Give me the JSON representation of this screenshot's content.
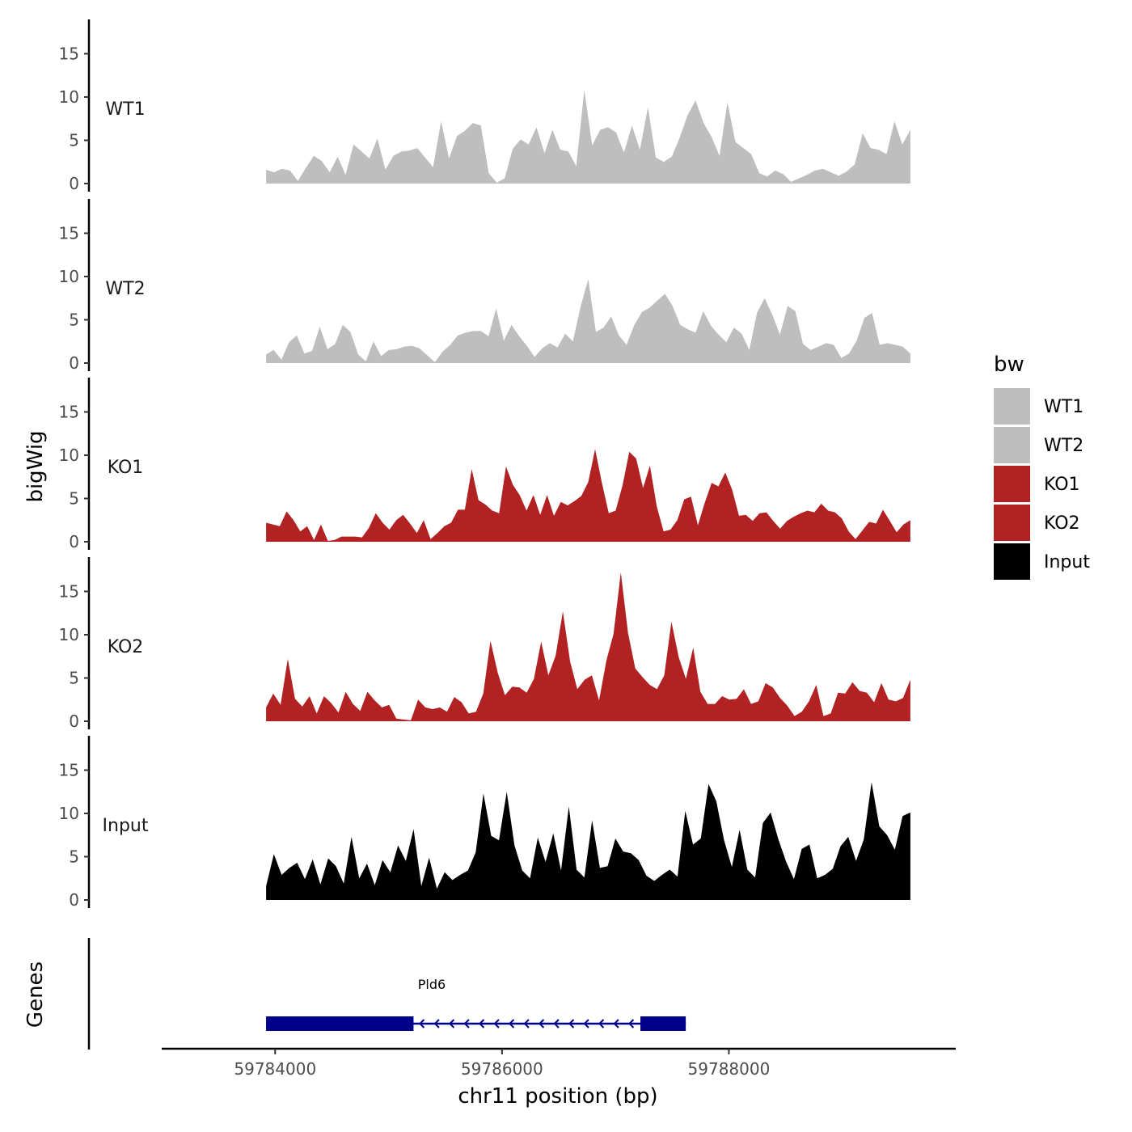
{
  "chart_data": {
    "type": "area",
    "chromosome": "chr11",
    "xlabel": "chr11 position (bp)",
    "ylabel": "bigWig",
    "genes_label": "Genes",
    "xlim": [
      59783000,
      59790000
    ],
    "x_range_data": [
      59783920,
      59789600
    ],
    "x_ticks": [
      59784000,
      59786000,
      59788000
    ],
    "x_tick_labels": [
      "59784000",
      "59786000",
      "59788000"
    ],
    "ylim": [
      0,
      18.5
    ],
    "y_ticks": [
      0,
      5,
      10,
      15
    ],
    "y_tick_labels": [
      "0",
      "5",
      "10",
      "15"
    ],
    "legend": {
      "title": "bw",
      "entries": [
        {
          "label": "WT1",
          "color": "#bebebe"
        },
        {
          "label": "WT2",
          "color": "#bebebe"
        },
        {
          "label": "KO1",
          "color": "#b22222"
        },
        {
          "label": "KO2",
          "color": "#b22222"
        },
        {
          "label": "Input",
          "color": "#000000"
        }
      ]
    },
    "series": [
      {
        "name": "WT1",
        "color": "#bebebe",
        "values": [
          1.6,
          1.3,
          1.7,
          1.5,
          0.3,
          1.8,
          3.2,
          2.6,
          1.3,
          3.1,
          1.0,
          4.5,
          3.7,
          2.9,
          5.2,
          1.6,
          3.2,
          3.7,
          3.8,
          4.1,
          3.0,
          1.9,
          7.2,
          2.9,
          5.5,
          6.1,
          7.0,
          6.7,
          1.2,
          0.1,
          0.6,
          4.0,
          5.1,
          4.5,
          6.5,
          3.5,
          6.2,
          3.9,
          3.7,
          2.0,
          10.8,
          4.4,
          6.2,
          6.5,
          5.9,
          3.6,
          6.7,
          3.9,
          8.8,
          3.0,
          2.5,
          3.1,
          5.3,
          7.9,
          9.6,
          7.0,
          5.4,
          3.2,
          9.4,
          4.8,
          4.1,
          3.4,
          1.2,
          0.8,
          1.5,
          1.1,
          0.2,
          0.6,
          1.0,
          1.5,
          1.7,
          1.3,
          0.9,
          1.4,
          2.2,
          5.8,
          4.1,
          3.9,
          3.4,
          7.2,
          4.5,
          6.2
        ]
      },
      {
        "name": "WT2",
        "color": "#bebebe",
        "values": [
          1.0,
          1.5,
          0.4,
          2.4,
          3.2,
          1.1,
          1.4,
          4.2,
          1.6,
          2.2,
          4.4,
          3.6,
          1.0,
          0.2,
          2.5,
          0.8,
          1.5,
          1.6,
          1.9,
          2.0,
          1.7,
          0.9,
          0.1,
          1.3,
          2.1,
          3.2,
          3.5,
          3.7,
          3.7,
          3.1,
          6.3,
          2.6,
          4.4,
          3.1,
          2.0,
          0.7,
          1.7,
          2.3,
          1.8,
          3.4,
          2.5,
          6.5,
          9.7,
          3.6,
          4.1,
          5.4,
          3.2,
          2.1,
          4.4,
          5.9,
          6.4,
          7.2,
          8.0,
          6.6,
          4.4,
          3.9,
          3.5,
          6.0,
          4.3,
          3.3,
          2.4,
          4.1,
          3.4,
          1.5,
          5.8,
          7.5,
          5.6,
          3.3,
          6.6,
          6.0,
          2.2,
          1.5,
          1.9,
          2.3,
          2.1,
          0.6,
          1.1,
          2.6,
          5.2,
          5.8,
          2.1,
          2.3,
          2.1,
          1.9,
          1.1
        ]
      },
      {
        "name": "KO1",
        "color": "#b22222",
        "values": [
          2.2,
          2.0,
          1.8,
          3.5,
          2.5,
          1.2,
          1.8,
          0.2,
          2.0,
          0.1,
          0.2,
          0.6,
          0.6,
          0.6,
          0.5,
          1.6,
          3.3,
          2.2,
          1.4,
          2.5,
          3.1,
          2.1,
          1.0,
          2.5,
          0.3,
          1.0,
          1.8,
          2.2,
          3.7,
          3.7,
          8.4,
          4.8,
          4.3,
          3.6,
          3.3,
          8.7,
          6.6,
          5.4,
          3.6,
          5.4,
          3.1,
          5.4,
          3.0,
          4.6,
          4.2,
          4.7,
          5.3,
          6.9,
          10.7,
          6.8,
          3.3,
          3.6,
          6.5,
          10.4,
          9.6,
          6.2,
          8.8,
          4.1,
          1.2,
          1.4,
          2.5,
          4.9,
          5.2,
          1.9,
          4.5,
          6.8,
          6.4,
          8.0,
          6.0,
          3.0,
          3.1,
          2.4,
          3.3,
          3.4,
          2.4,
          1.5,
          2.4,
          2.9,
          3.3,
          3.6,
          3.4,
          4.4,
          3.6,
          3.4,
          2.7,
          1.2,
          0.3,
          1.3,
          2.3,
          2.1,
          3.7,
          2.4,
          1.1,
          2.0,
          2.5
        ]
      },
      {
        "name": "KO2",
        "color": "#b22222",
        "values": [
          1.6,
          3.2,
          1.9,
          7.2,
          2.6,
          1.7,
          2.9,
          0.9,
          2.9,
          2.1,
          1.0,
          3.4,
          2.0,
          1.2,
          3.4,
          2.4,
          1.6,
          1.9,
          0.3,
          0.2,
          0.1,
          2.5,
          1.6,
          1.4,
          1.6,
          1.1,
          2.8,
          2.2,
          0.9,
          1.1,
          3.2,
          9.3,
          5.6,
          3.0,
          4.0,
          3.9,
          3.3,
          4.9,
          9.2,
          5.3,
          7.6,
          12.7,
          6.9,
          3.7,
          4.8,
          5.3,
          2.4,
          7.0,
          10.1,
          17.2,
          10.2,
          6.1,
          5.1,
          4.2,
          3.7,
          5.3,
          11.5,
          7.4,
          4.9,
          8.5,
          3.4,
          2.0,
          2.0,
          2.9,
          2.5,
          2.6,
          3.7,
          2.0,
          2.3,
          4.4,
          3.9,
          2.7,
          1.8,
          0.6,
          1.1,
          2.3,
          4.2,
          0.6,
          0.9,
          3.3,
          3.2,
          4.5,
          3.5,
          3.3,
          2.2,
          4.4,
          2.5,
          2.3,
          2.7,
          4.8
        ]
      },
      {
        "name": "Input",
        "color": "#000000",
        "values": [
          1.6,
          5.3,
          2.9,
          3.7,
          4.3,
          2.4,
          4.7,
          1.8,
          4.8,
          3.9,
          1.9,
          7.3,
          2.5,
          4.2,
          1.7,
          4.6,
          3.2,
          6.3,
          4.5,
          8.2,
          1.6,
          4.9,
          1.3,
          3.2,
          2.3,
          2.9,
          3.4,
          5.5,
          12.3,
          7.4,
          6.9,
          12.5,
          6.3,
          3.4,
          2.5,
          7.2,
          4.4,
          7.7,
          3.4,
          10.8,
          3.5,
          2.6,
          9.2,
          3.7,
          3.9,
          7.1,
          5.6,
          5.4,
          4.6,
          2.8,
          2.2,
          2.9,
          3.5,
          2.7,
          10.3,
          6.4,
          7.1,
          13.4,
          11.4,
          6.9,
          3.8,
          8.1,
          3.5,
          2.6,
          8.9,
          10.1,
          7.0,
          4.4,
          2.4,
          5.9,
          6.4,
          2.5,
          2.9,
          3.6,
          6.2,
          7.3,
          4.5,
          7.0,
          13.6,
          8.5,
          7.5,
          5.8,
          9.7,
          10.1
        ]
      }
    ],
    "genes": [
      {
        "name": "Pld6",
        "strand": "-",
        "start": 59783920,
        "end": 59787620,
        "exons": [
          [
            59783920,
            59785220
          ],
          [
            59787220,
            59787620
          ]
        ]
      }
    ]
  }
}
